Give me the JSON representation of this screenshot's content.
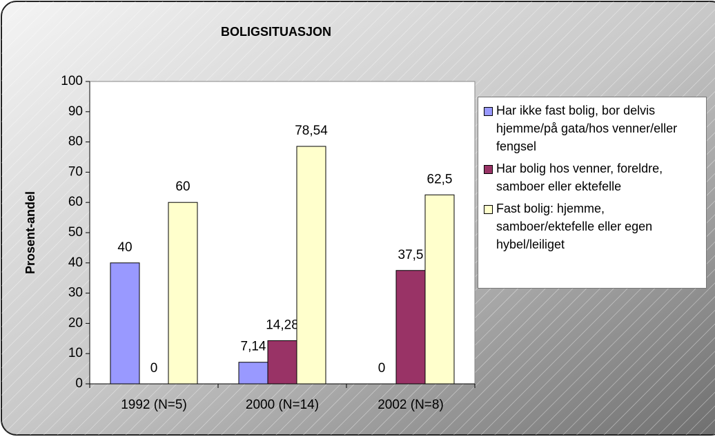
{
  "chart_data": {
    "type": "bar",
    "title": "BOLIGSITUASJON",
    "y_label": "Prosent-andel",
    "categories": [
      "1992 (N=5)",
      "2000 (N=14)",
      "2002 (N=8)"
    ],
    "series": [
      {
        "name": "Har ikke fast bolig, bor delvis hjemme/på gata/hos venner/eller fengsel",
        "color": "#9999ff",
        "values": [
          40,
          7.14,
          0
        ],
        "value_labels": [
          "40",
          "7,14",
          "0"
        ]
      },
      {
        "name": "Har bolig hos venner, foreldre, samboer eller ektefelle",
        "color": "#993366",
        "values": [
          0,
          14.28,
          37.5
        ],
        "value_labels": [
          "0",
          "14,28",
          "37,5"
        ]
      },
      {
        "name": "Fast bolig: hjemme, samboer/ektefelle eller egen hybel/leiliget",
        "color": "#ffffcc",
        "values": [
          60,
          78.54,
          62.5
        ],
        "value_labels": [
          "60",
          "78,54",
          "62,5"
        ]
      }
    ],
    "ylim": [
      0,
      100
    ],
    "yticks": [
      0,
      10,
      20,
      30,
      40,
      50,
      60,
      70,
      80,
      90,
      100
    ],
    "grid": false,
    "legend": "right"
  }
}
